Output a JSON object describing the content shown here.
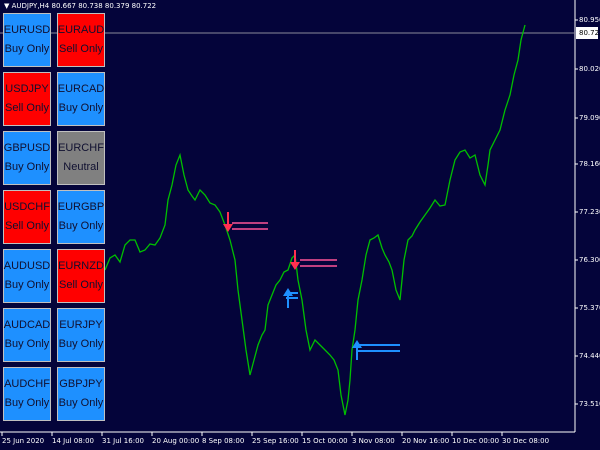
{
  "header": {
    "text": "▼ AUDJPY,H4 80.667 80.738 80.379 80.722"
  },
  "price_axis": {
    "labels": [
      "80.950",
      "80.020",
      "79.090",
      "78.160",
      "77.230",
      "76.300",
      "75.370",
      "74.440",
      "73.510"
    ],
    "current": "80.722"
  },
  "time_axis": {
    "labels": [
      "25 Jun 2020",
      "14 Jul 08:00",
      "31 Jul 16:00",
      "20 Aug 00:00",
      "8 Sep 08:00",
      "25 Sep 16:00",
      "15 Oct 00:00",
      "3 Nov 08:00",
      "20 Nov 16:00",
      "10 Dec 00:00",
      "30 Dec 08:00"
    ]
  },
  "buttons": [
    [
      {
        "symbol": "EURUSD",
        "mode": "Buy Only",
        "color": "#1e90ff"
      },
      {
        "symbol": "EURAUD",
        "mode": "Sell Only",
        "color": "#ff0000"
      }
    ],
    [
      {
        "symbol": "USDJPY",
        "mode": "Sell Only",
        "color": "#ff0000"
      },
      {
        "symbol": "EURCAD",
        "mode": "Buy Only",
        "color": "#1e90ff"
      }
    ],
    [
      {
        "symbol": "GBPUSD",
        "mode": "Buy Only",
        "color": "#1e90ff"
      },
      {
        "symbol": "EURCHF",
        "mode": "Neutral",
        "color": "#808080"
      }
    ],
    [
      {
        "symbol": "USDCHF",
        "mode": "Sell Only",
        "color": "#ff0000"
      },
      {
        "symbol": "EURGBP",
        "mode": "Buy Only",
        "color": "#1e90ff"
      }
    ],
    [
      {
        "symbol": "AUDUSD",
        "mode": "Buy Only",
        "color": "#1e90ff"
      },
      {
        "symbol": "EURNZD",
        "mode": "Sell Only",
        "color": "#ff0000"
      }
    ],
    [
      {
        "symbol": "AUDCAD",
        "mode": "Buy Only",
        "color": "#1e90ff"
      },
      {
        "symbol": "EURJPY",
        "mode": "Buy Only",
        "color": "#1e90ff"
      }
    ],
    [
      {
        "symbol": "AUDCHF",
        "mode": "Buy Only",
        "color": "#1e90ff"
      },
      {
        "symbol": "GBPJPY",
        "mode": "Buy Only",
        "color": "#1e90ff"
      }
    ]
  ]
}
